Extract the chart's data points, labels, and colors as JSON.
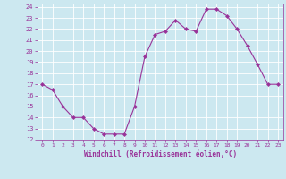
{
  "x": [
    0,
    1,
    2,
    3,
    4,
    5,
    6,
    7,
    8,
    9,
    10,
    11,
    12,
    13,
    14,
    15,
    16,
    17,
    18,
    19,
    20,
    21,
    22,
    23
  ],
  "y": [
    17,
    16.5,
    15,
    14,
    14,
    13,
    12.5,
    12.5,
    12.5,
    15,
    19.5,
    21.5,
    21.8,
    22.8,
    22,
    21.8,
    23.8,
    23.8,
    23.2,
    22,
    20.5,
    18.8,
    17,
    17
  ],
  "xlim": [
    -0.5,
    23.5
  ],
  "ylim": [
    12,
    24.3
  ],
  "yticks": [
    12,
    13,
    14,
    15,
    16,
    17,
    18,
    19,
    20,
    21,
    22,
    23,
    24
  ],
  "xticks": [
    0,
    1,
    2,
    3,
    4,
    5,
    6,
    7,
    8,
    9,
    10,
    11,
    12,
    13,
    14,
    15,
    16,
    17,
    18,
    19,
    20,
    21,
    22,
    23
  ],
  "line_color": "#993399",
  "marker_color": "#993399",
  "bg_color": "#cce8f0",
  "grid_color": "#ffffff",
  "xlabel": "Windchill (Refroidissement éolien,°C)",
  "xlabel_color": "#993399",
  "tick_color": "#993399",
  "figsize": [
    3.2,
    2.0
  ],
  "dpi": 100
}
